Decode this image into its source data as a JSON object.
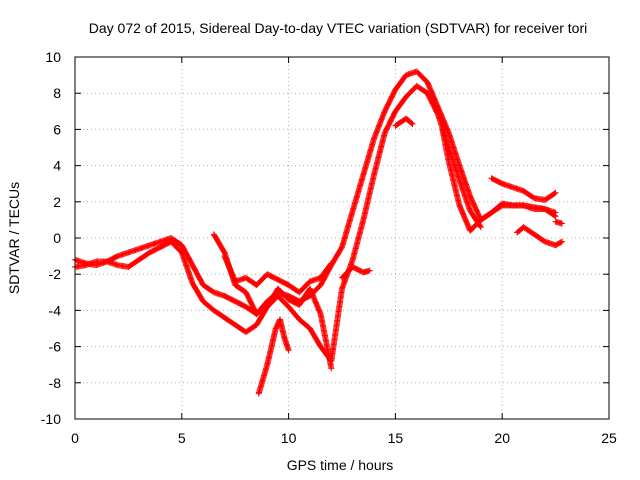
{
  "chart_data": {
    "type": "scatter",
    "title": "Day 072 of 2015, Sidereal Day-to-day VTEC variation (SDTVAR) for receiver tori",
    "xlabel": "GPS time / hours",
    "ylabel": "SDTVAR / TECUs",
    "xlim": [
      0,
      25
    ],
    "ylim": [
      -10,
      10
    ],
    "xticks": [
      "0",
      "5",
      "10",
      "15",
      "20",
      "25"
    ],
    "xtick_values": [
      0,
      5,
      10,
      15,
      20,
      25
    ],
    "yticks": [
      "-10",
      "-8",
      "-6",
      "-4",
      "-2",
      "0",
      "2",
      "4",
      "6",
      "8",
      "10"
    ],
    "ytick_values": [
      -10,
      -8,
      -6,
      -4,
      -2,
      0,
      2,
      4,
      6,
      8,
      10
    ],
    "grid": true,
    "marker": "plus",
    "color": "#ff0000",
    "series": [
      {
        "x": [
          0,
          0.5,
          1,
          1.5,
          2,
          2.5,
          3,
          3.5,
          4,
          4.5,
          5,
          5.5,
          6,
          6.5,
          7,
          7.5,
          8,
          8.5,
          9,
          9.5,
          10,
          10.5,
          11,
          11.5,
          12,
          12.5,
          13,
          13.5,
          14,
          14.5,
          15,
          15.5,
          16,
          16.5,
          17,
          17.5,
          18,
          18.5,
          19,
          19.5,
          20,
          20.5,
          21,
          21.5,
          22,
          22.5
        ],
        "y": [
          -1.2,
          -1.4,
          -1.5,
          -1.3,
          -1.0,
          -0.8,
          -0.6,
          -0.4,
          -0.2,
          0.0,
          -0.4,
          -1.5,
          -2.6,
          -3.0,
          -3.2,
          -3.5,
          -3.8,
          -4.2,
          -3.5,
          -3.0,
          -3.2,
          -3.5,
          -3.2,
          -2.6,
          -1.5,
          -0.5,
          1.5,
          3.5,
          5.5,
          7.0,
          8.2,
          9.0,
          9.2,
          8.6,
          7.2,
          5.8,
          4.0,
          2.3,
          1.0,
          1.4,
          1.8,
          1.8,
          1.8,
          1.7,
          1.6,
          1.4
        ]
      },
      {
        "x": [
          0,
          0.5,
          1,
          1.5,
          2,
          2.5,
          3,
          3.5,
          4,
          4.5,
          5,
          5.5,
          6,
          6.5,
          7,
          7.5,
          8,
          8.5,
          9,
          9.5,
          10,
          10.5,
          11,
          11.5,
          12,
          12.5,
          13,
          13.5,
          14,
          14.5,
          15,
          15.5,
          16,
          16.5,
          17,
          17.5,
          18,
          18.5,
          19
        ],
        "y": [
          -1.6,
          -1.5,
          -1.3,
          -1.3,
          -1.5,
          -1.6,
          -1.2,
          -0.8,
          -0.5,
          -0.2,
          -0.8,
          -2.5,
          -3.5,
          -4.0,
          -4.4,
          -4.8,
          -5.2,
          -4.8,
          -3.8,
          -3.2,
          -3.8,
          -4.5,
          -5.0,
          -6.0,
          -6.8,
          -2.8,
          -1.2,
          1.0,
          3.5,
          5.8,
          7.0,
          7.8,
          8.4,
          8.0,
          6.8,
          5.0,
          3.2,
          1.5,
          0.6
        ]
      },
      {
        "x": [
          6.5,
          7,
          7.5,
          8,
          8.5,
          9,
          9.5,
          10,
          10.5,
          11,
          11.5,
          12
        ],
        "y": [
          0.2,
          -0.8,
          -2.6,
          -3.0,
          -4.2,
          -3.8,
          -2.8,
          -3.4,
          -3.7,
          -2.8,
          -4.2,
          -7.2
        ]
      },
      {
        "x": [
          7,
          7.5,
          8,
          8.5,
          9,
          9.5,
          10,
          10.5,
          11,
          11.5,
          12
        ],
        "y": [
          -1.0,
          -2.4,
          -2.2,
          -2.6,
          -2.0,
          -2.3,
          -2.6,
          -3.0,
          -2.4,
          -2.2,
          -1.4
        ]
      },
      {
        "x": [
          8.6,
          8.8,
          9,
          9.2,
          9.4,
          9.6,
          9.8,
          10
        ],
        "y": [
          -8.6,
          -7.8,
          -7.0,
          -6.0,
          -5.0,
          -4.5,
          -5.5,
          -6.2
        ]
      },
      {
        "x": [
          12.5,
          13,
          13.5,
          13.8
        ],
        "y": [
          -2.2,
          -1.6,
          -1.9,
          -1.8
        ]
      },
      {
        "x": [
          15,
          15.5,
          15.8
        ],
        "y": [
          6.2,
          6.6,
          6.3
        ]
      },
      {
        "x": [
          17.2,
          17.5,
          18,
          18.5,
          19,
          19.5,
          20,
          20.5,
          21,
          21.5,
          22,
          22.5
        ],
        "y": [
          6.0,
          4.2,
          1.8,
          0.4,
          1.0,
          1.4,
          1.9,
          1.8,
          1.8,
          1.6,
          1.6,
          1.2
        ]
      },
      {
        "x": [
          19.5,
          20,
          20.5,
          21,
          21.5,
          22,
          22.5
        ],
        "y": [
          3.3,
          3.0,
          2.8,
          2.6,
          2.2,
          2.1,
          2.5
        ]
      },
      {
        "x": [
          20.7,
          21,
          21.5,
          22,
          22.5,
          22.8
        ],
        "y": [
          0.3,
          0.6,
          0.2,
          -0.2,
          -0.4,
          -0.2
        ]
      },
      {
        "x": [
          22.5,
          22.8
        ],
        "y": [
          0.9,
          0.8
        ]
      }
    ]
  }
}
